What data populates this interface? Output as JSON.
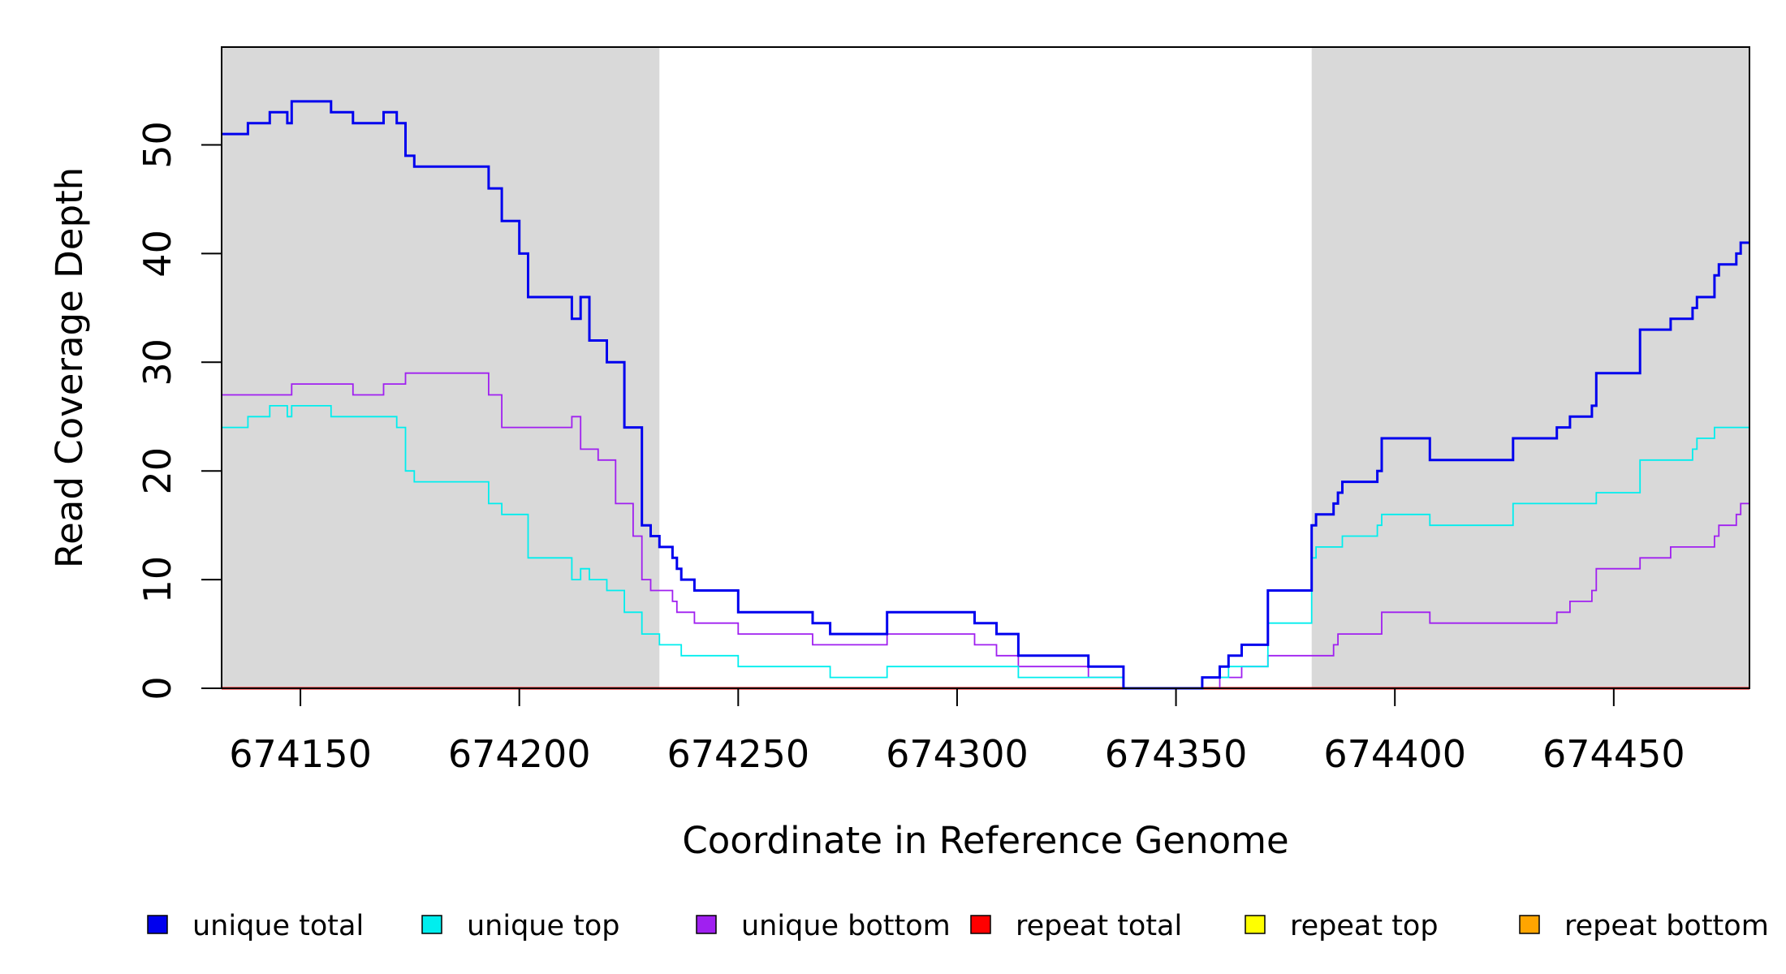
{
  "chart_data": {
    "type": "line",
    "xlabel": "Coordinate in Reference Genome",
    "ylabel": "Read Coverage Depth",
    "xlim": [
      674132,
      674481
    ],
    "ylim": [
      0,
      59
    ],
    "x_ticks": [
      674150,
      674200,
      674250,
      674300,
      674350,
      674400,
      674450
    ],
    "x_tick_labels": [
      "674150",
      "674200",
      "674250",
      "674300",
      "674350",
      "674400",
      "674450"
    ],
    "y_ticks": [
      0,
      10,
      20,
      30,
      40,
      50
    ],
    "y_tick_labels": [
      "0",
      "10",
      "20",
      "30",
      "40",
      "50"
    ],
    "shaded_regions": [
      {
        "x_start": 674132,
        "x_end": 674232,
        "color": "#d9d9d9"
      },
      {
        "x_start": 674381,
        "x_end": 674481,
        "color": "#d9d9d9"
      }
    ],
    "legend_position": "bottom",
    "series": [
      {
        "name": "unique total",
        "color": "#0000ee",
        "points": [
          [
            674132,
            51
          ],
          [
            674138,
            52
          ],
          [
            674143,
            53
          ],
          [
            674147,
            52
          ],
          [
            674148,
            54
          ],
          [
            674157,
            53
          ],
          [
            674162,
            52
          ],
          [
            674169,
            53
          ],
          [
            674172,
            52
          ],
          [
            674174,
            49
          ],
          [
            674176,
            48
          ],
          [
            674193,
            46
          ],
          [
            674196,
            43
          ],
          [
            674200,
            40
          ],
          [
            674202,
            36
          ],
          [
            674212,
            34
          ],
          [
            674214,
            36
          ],
          [
            674216,
            32
          ],
          [
            674220,
            30
          ],
          [
            674224,
            24
          ],
          [
            674228,
            15
          ],
          [
            674230,
            14
          ],
          [
            674232,
            13
          ],
          [
            674235,
            12
          ],
          [
            674236,
            11
          ],
          [
            674237,
            10
          ],
          [
            674240,
            9
          ],
          [
            674250,
            7
          ],
          [
            674267,
            6
          ],
          [
            674271,
            5
          ],
          [
            674284,
            7
          ],
          [
            674304,
            6
          ],
          [
            674309,
            5
          ],
          [
            674314,
            3
          ],
          [
            674330,
            2
          ],
          [
            674338,
            0
          ],
          [
            674356,
            1
          ],
          [
            674360,
            2
          ],
          [
            674362,
            3
          ],
          [
            674365,
            4
          ],
          [
            674371,
            9
          ],
          [
            674381,
            15
          ],
          [
            674382,
            16
          ],
          [
            674386,
            17
          ],
          [
            674387,
            18
          ],
          [
            674388,
            19
          ],
          [
            674396,
            20
          ],
          [
            674397,
            23
          ],
          [
            674408,
            21
          ],
          [
            674427,
            23
          ],
          [
            674437,
            24
          ],
          [
            674440,
            25
          ],
          [
            674445,
            26
          ],
          [
            674446,
            29
          ],
          [
            674456,
            33
          ],
          [
            674463,
            34
          ],
          [
            674468,
            35
          ],
          [
            674469,
            36
          ],
          [
            674473,
            38
          ],
          [
            674474,
            39
          ],
          [
            674478,
            40
          ],
          [
            674479,
            41
          ],
          [
            674481,
            41
          ]
        ]
      },
      {
        "name": "unique top",
        "color": "#00eeee",
        "points": [
          [
            674132,
            24
          ],
          [
            674138,
            25
          ],
          [
            674143,
            26
          ],
          [
            674147,
            25
          ],
          [
            674148,
            26
          ],
          [
            674157,
            25
          ],
          [
            674172,
            24
          ],
          [
            674174,
            20
          ],
          [
            674176,
            19
          ],
          [
            674193,
            17
          ],
          [
            674196,
            16
          ],
          [
            674202,
            12
          ],
          [
            674212,
            10
          ],
          [
            674214,
            11
          ],
          [
            674216,
            10
          ],
          [
            674220,
            9
          ],
          [
            674224,
            7
          ],
          [
            674228,
            5
          ],
          [
            674232,
            4
          ],
          [
            674237,
            3
          ],
          [
            674250,
            2
          ],
          [
            674271,
            1
          ],
          [
            674284,
            2
          ],
          [
            674314,
            1
          ],
          [
            674338,
            0
          ],
          [
            674356,
            1
          ],
          [
            674362,
            2
          ],
          [
            674371,
            6
          ],
          [
            674381,
            12
          ],
          [
            674382,
            13
          ],
          [
            674388,
            14
          ],
          [
            674396,
            15
          ],
          [
            674397,
            16
          ],
          [
            674408,
            15
          ],
          [
            674427,
            17
          ],
          [
            674446,
            18
          ],
          [
            674456,
            21
          ],
          [
            674468,
            22
          ],
          [
            674469,
            23
          ],
          [
            674473,
            24
          ],
          [
            674481,
            24
          ]
        ]
      },
      {
        "name": "unique bottom",
        "color": "#a020f0",
        "points": [
          [
            674132,
            27
          ],
          [
            674148,
            28
          ],
          [
            674162,
            27
          ],
          [
            674169,
            28
          ],
          [
            674174,
            29
          ],
          [
            674193,
            27
          ],
          [
            674196,
            24
          ],
          [
            674212,
            25
          ],
          [
            674214,
            22
          ],
          [
            674218,
            21
          ],
          [
            674222,
            17
          ],
          [
            674226,
            14
          ],
          [
            674228,
            10
          ],
          [
            674230,
            9
          ],
          [
            674235,
            8
          ],
          [
            674236,
            7
          ],
          [
            674240,
            6
          ],
          [
            674250,
            5
          ],
          [
            674267,
            4
          ],
          [
            674284,
            5
          ],
          [
            674304,
            4
          ],
          [
            674309,
            3
          ],
          [
            674314,
            2
          ],
          [
            674330,
            1
          ],
          [
            674338,
            0
          ],
          [
            674360,
            1
          ],
          [
            674365,
            2
          ],
          [
            674371,
            3
          ],
          [
            674386,
            4
          ],
          [
            674387,
            5
          ],
          [
            674397,
            7
          ],
          [
            674408,
            6
          ],
          [
            674437,
            7
          ],
          [
            674440,
            8
          ],
          [
            674445,
            9
          ],
          [
            674446,
            11
          ],
          [
            674456,
            12
          ],
          [
            674463,
            13
          ],
          [
            674473,
            14
          ],
          [
            674474,
            15
          ],
          [
            674478,
            16
          ],
          [
            674479,
            17
          ],
          [
            674481,
            17
          ]
        ]
      },
      {
        "name": "repeat total",
        "color": "#ff0000",
        "points": [
          [
            674132,
            0
          ],
          [
            674481,
            0
          ]
        ]
      },
      {
        "name": "repeat top",
        "color": "#ffff00",
        "points": [
          [
            674132,
            0
          ],
          [
            674481,
            0
          ]
        ]
      },
      {
        "name": "repeat bottom",
        "color": "#ffa500",
        "points": [
          [
            674132,
            0
          ],
          [
            674481,
            0
          ]
        ]
      }
    ]
  }
}
